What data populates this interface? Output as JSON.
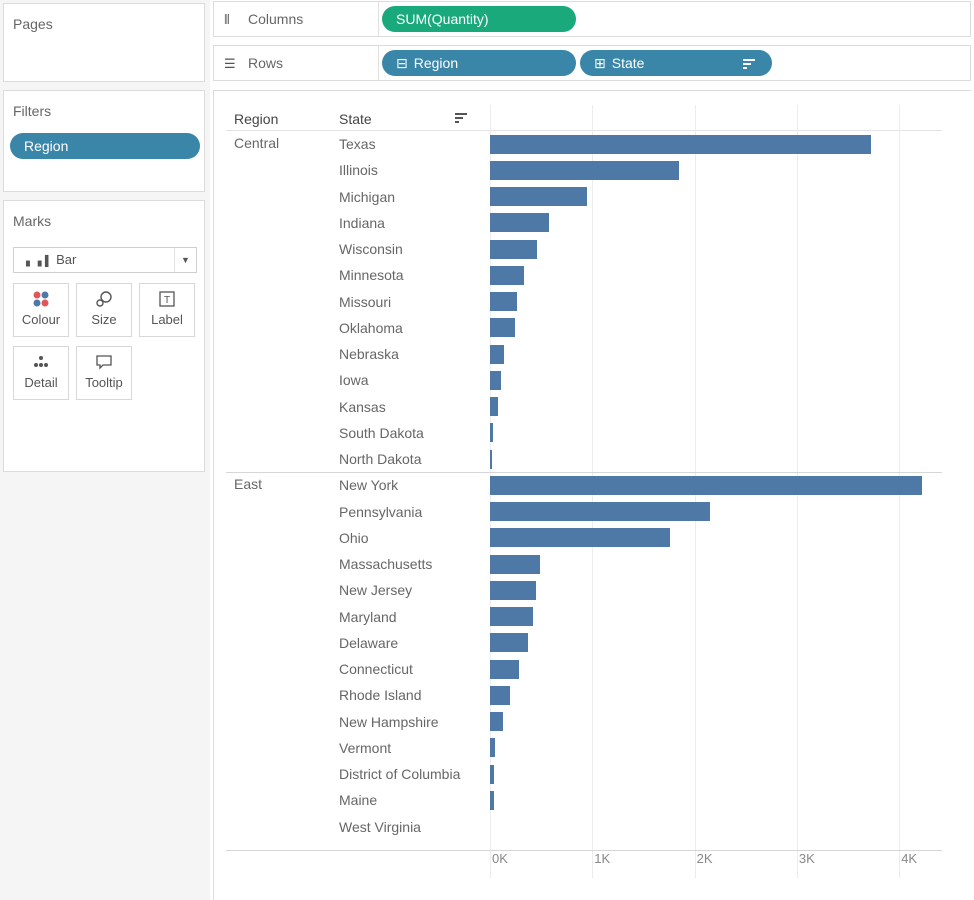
{
  "panels": {
    "pages_title": "Pages",
    "filters_title": "Filters",
    "filter_pill": "Region",
    "marks_title": "Marks",
    "mark_type": "Bar",
    "mark_buttons": {
      "colour": "Colour",
      "size": "Size",
      "label": "Label",
      "detail": "Detail",
      "tooltip": "Tooltip"
    }
  },
  "shelves": {
    "columns_label": "Columns",
    "columns_pill": "SUM(Quantity)",
    "rows_label": "Rows",
    "rows_pill_region": "Region",
    "rows_pill_state": "State"
  },
  "colors": {
    "bar": "#4e79a7",
    "dimension_pill": "#3a86a8",
    "measure_pill": "#1aa97b"
  },
  "icons": {
    "columns": "columns-icon",
    "rows": "rows-icon",
    "sort": "sort-icon",
    "colour": "colour-icon",
    "size": "size-icon",
    "label": "label-icon",
    "detail": "detail-icon",
    "tooltip": "tooltip-icon",
    "bar_mark": "bar-chart-icon",
    "dropdown": "chevron-down-icon"
  },
  "chart_data": {
    "type": "bar",
    "orientation": "horizontal",
    "column_headers": {
      "region": "Region",
      "state": "State"
    },
    "xlim": [
      0,
      4500
    ],
    "x_ticks": [
      "0K",
      "1K",
      "2K",
      "3K",
      "4K"
    ],
    "grid": true,
    "groups": [
      {
        "region": "Central",
        "categories": [
          "Texas",
          "Illinois",
          "Michigan",
          "Indiana",
          "Wisconsin",
          "Minnesota",
          "Missouri",
          "Oklahoma",
          "Nebraska",
          "Iowa",
          "Kansas",
          "South Dakota",
          "North Dakota"
        ],
        "values": [
          3724,
          1845,
          946,
          578,
          463,
          331,
          265,
          248,
          136,
          112,
          74,
          27,
          19
        ]
      },
      {
        "region": "East",
        "categories": [
          "New York",
          "Pennsylvania",
          "Ohio",
          "Massachusetts",
          "New Jersey",
          "Maryland",
          "Delaware",
          "Connecticut",
          "Rhode Island",
          "New Hampshire",
          "Vermont",
          "District of Columbia",
          "Maine",
          "West Virginia"
        ],
        "values": [
          4224,
          2153,
          1759,
          491,
          454,
          420,
          367,
          281,
          199,
          128,
          46,
          40,
          35,
          0
        ]
      }
    ]
  }
}
